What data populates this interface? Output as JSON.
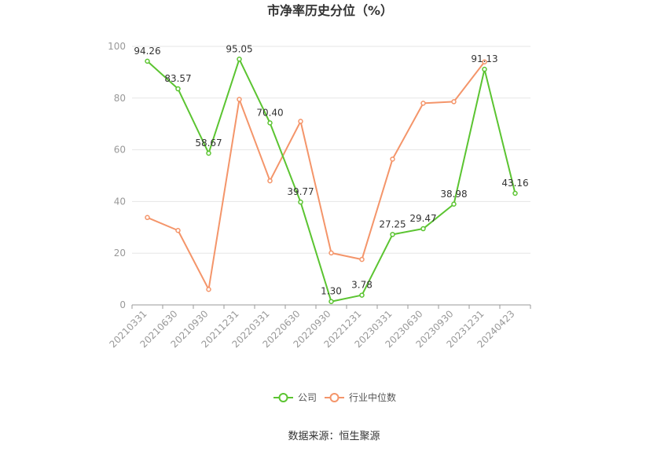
{
  "chart_data": {
    "type": "line",
    "title": "市净率历史分位（%）",
    "categories": [
      "20210331",
      "20210630",
      "20210930",
      "20211231",
      "20220331",
      "20220630",
      "20220930",
      "20221231",
      "20230331",
      "20230630",
      "20230930",
      "20231231",
      "20240423"
    ],
    "ylim": [
      0,
      100
    ],
    "yticks": [
      "0",
      "20",
      "40",
      "60",
      "80",
      "100"
    ],
    "grid": true,
    "legend": "bottom",
    "series": [
      {
        "name": "公司",
        "color": "#5bc431",
        "values": [
          94.26,
          83.57,
          58.67,
          95.05,
          70.4,
          39.77,
          1.3,
          3.78,
          27.25,
          29.47,
          38.98,
          91.13,
          43.16
        ],
        "labels": [
          "94.26",
          "83.57",
          "58.67",
          "95.05",
          "70.40",
          "39.77",
          "1.30",
          "3.78",
          "27.25",
          "29.47",
          "38.98",
          "91.13",
          "43.16"
        ]
      },
      {
        "name": "行业中位数",
        "color": "#f4956a",
        "values": [
          33.8,
          28.8,
          6.0,
          79.5,
          48.0,
          71.0,
          20.1,
          17.6,
          56.4,
          78.0,
          78.6,
          94.0,
          null
        ]
      }
    ]
  },
  "source": "数据来源：恒生聚源"
}
